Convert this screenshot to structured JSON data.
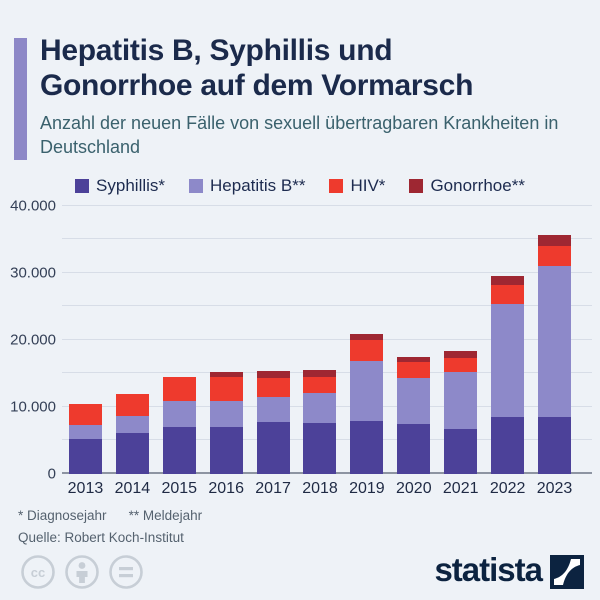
{
  "header": {
    "title_lines": [
      "Hepatitis B, Syphillis und",
      "Gonorrhoe auf dem Vormarsch"
    ],
    "subtitle": "Anzahl der neuen Fälle von sexuell übertragbaren Krankheiten in Deutschland"
  },
  "chart_data": {
    "type": "bar",
    "stacked": true,
    "categories": [
      "2013",
      "2014",
      "2015",
      "2016",
      "2017",
      "2018",
      "2019",
      "2020",
      "2021",
      "2022",
      "2023"
    ],
    "series": [
      {
        "name": "Syphillis*",
        "color": "#4c4199",
        "values": [
          5200,
          6000,
          6900,
          7000,
          7700,
          7500,
          7900,
          7400,
          6700,
          8400,
          8400
        ]
      },
      {
        "name": "Hepatitis B**",
        "color": "#8d89c9",
        "values": [
          2000,
          2600,
          3900,
          3800,
          3700,
          4500,
          8900,
          6900,
          8400,
          16900,
          22500
        ]
      },
      {
        "name": "HIV*",
        "color": "#ee3a2d",
        "values": [
          3200,
          3200,
          3600,
          3600,
          2900,
          2400,
          3100,
          2300,
          2100,
          2800,
          3100
        ]
      },
      {
        "name": "Gonorrhoe**",
        "color": "#9e2732",
        "values": [
          0,
          0,
          0,
          800,
          1000,
          1100,
          900,
          800,
          1100,
          1400,
          1600
        ]
      }
    ],
    "title": "Hepatitis B, Syphillis und Gonorrhoe auf dem Vormarsch",
    "xlabel": "",
    "ylabel": "",
    "ylim": [
      0,
      40000
    ],
    "grid": true,
    "gridline_step": 5000,
    "ytick_labels": [
      {
        "value": 0,
        "label": "0"
      },
      {
        "value": 10000,
        "label": "10.000"
      },
      {
        "value": 20000,
        "label": "20.000"
      },
      {
        "value": 30000,
        "label": "30.000"
      },
      {
        "value": 40000,
        "label": "40.000"
      }
    ],
    "legend_position": "top"
  },
  "footnotes": {
    "diagnose": "* Diagnosejahr",
    "melde": "** Meldejahr"
  },
  "source": "Quelle: Robert Koch-Institut",
  "brand": "statista"
}
